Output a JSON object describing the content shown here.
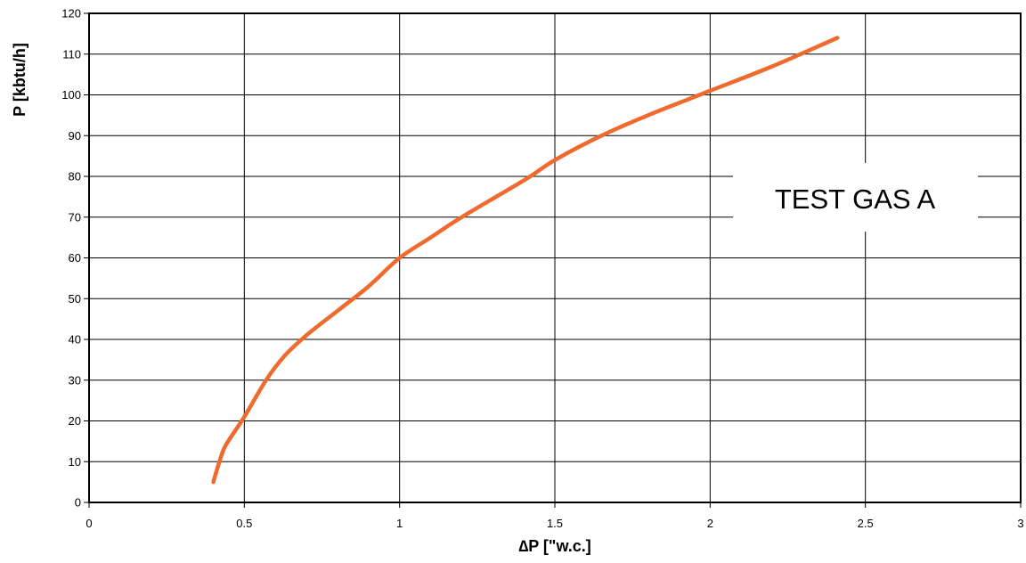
{
  "chart_data": {
    "type": "line",
    "xlabel": "∆P [\"w.c.]",
    "ylabel": "P [kbtu/h]",
    "xlim": [
      0,
      3
    ],
    "ylim": [
      0,
      120
    ],
    "x_ticks": [
      0,
      0.5,
      1,
      1.5,
      2,
      2.5,
      3
    ],
    "y_ticks": [
      0,
      10,
      20,
      30,
      40,
      50,
      60,
      70,
      80,
      90,
      100,
      110,
      120
    ],
    "x_tick_labels": [
      "0",
      "0.5",
      "1",
      "1.5",
      "2",
      "2.5",
      "3"
    ],
    "y_tick_labels": [
      "0",
      "10",
      "20",
      "30",
      "40",
      "50",
      "60",
      "70",
      "80",
      "90",
      "100",
      "110",
      "120"
    ],
    "grid": true,
    "annotation": "TEST GAS A",
    "series": [
      {
        "color": "#ef6a2d",
        "x": [
          0.4,
          0.42,
          0.44,
          0.5,
          0.57,
          0.63,
          0.7,
          0.8,
          0.9,
          1.0,
          1.1,
          1.2,
          1.4,
          1.5,
          1.65,
          1.8,
          2.0,
          2.2,
          2.41
        ],
        "y": [
          5,
          10,
          14,
          21,
          30,
          36,
          41,
          47,
          53,
          60,
          65,
          70,
          79,
          84,
          90,
          95,
          101,
          107,
          114
        ]
      }
    ]
  }
}
